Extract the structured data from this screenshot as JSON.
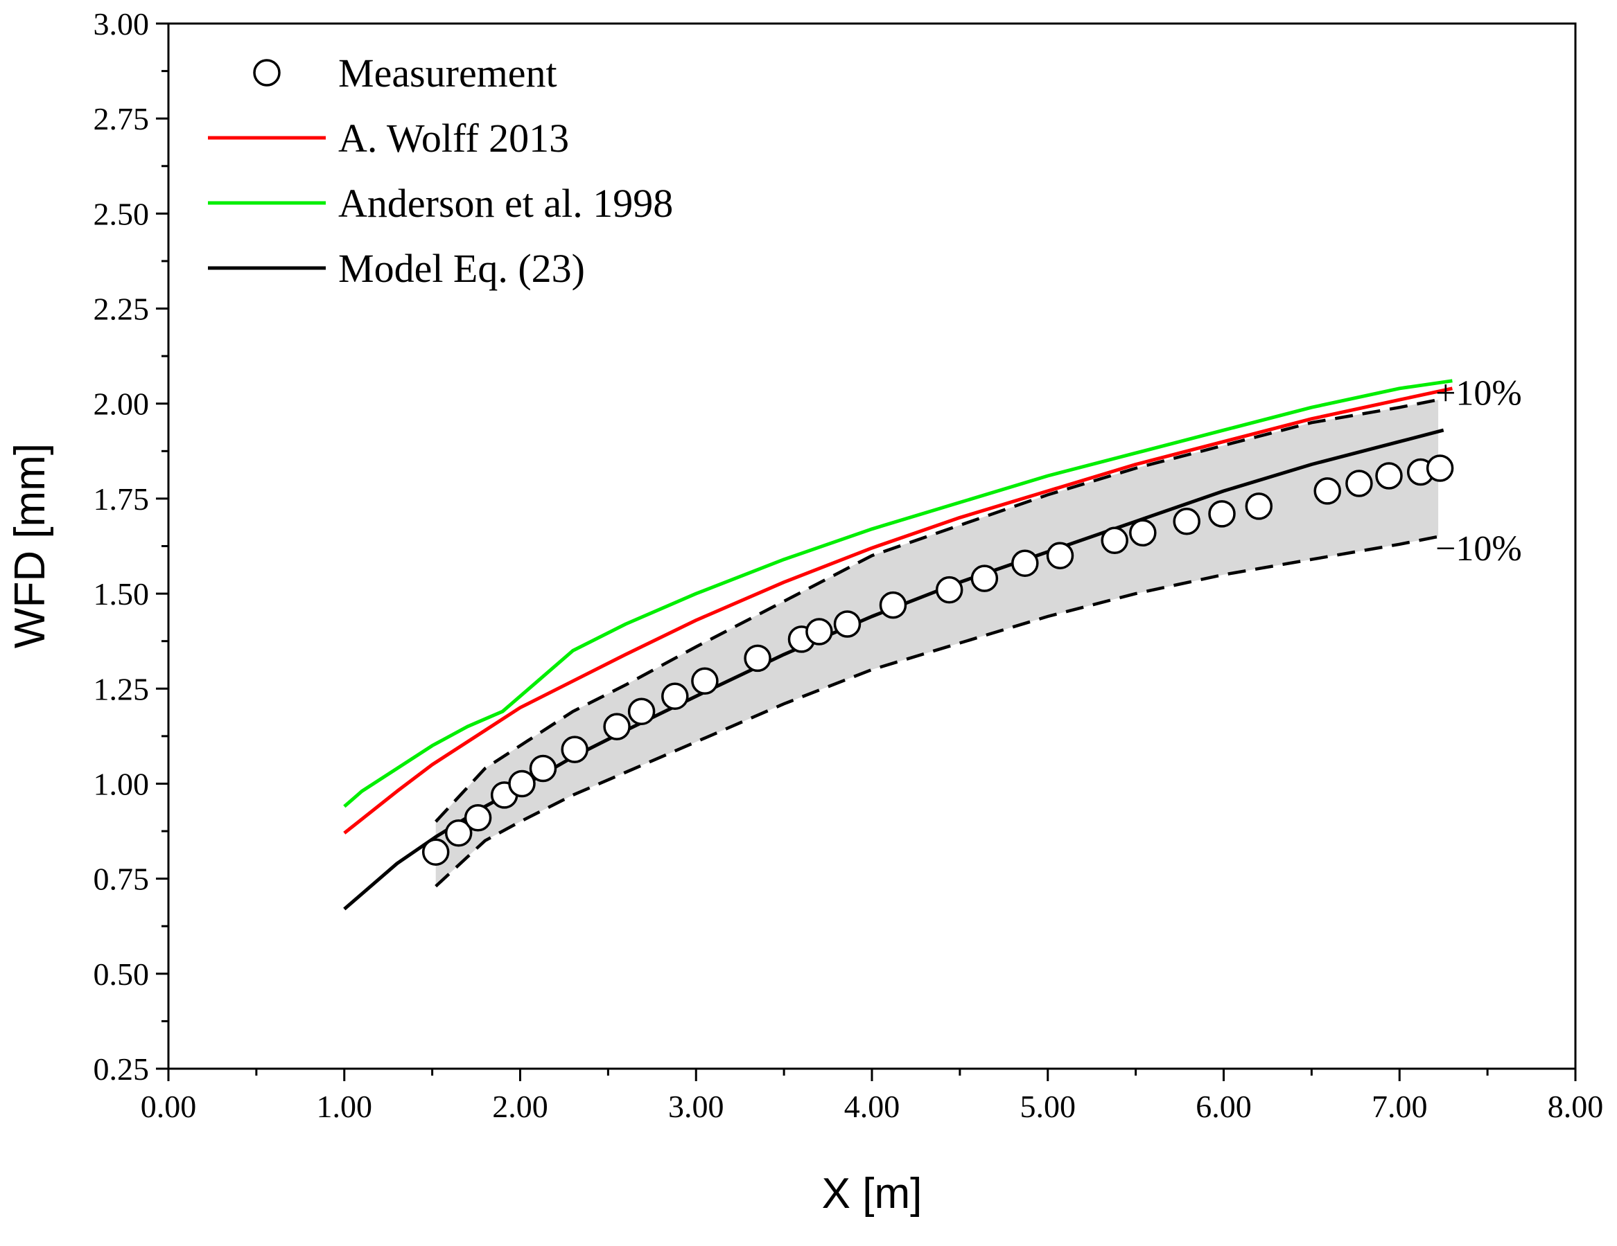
{
  "chart_data": {
    "type": "line",
    "title": "",
    "xlabel": "X [m]",
    "ylabel": "WFD [mm]",
    "xlim": [
      0,
      8
    ],
    "ylim": [
      0.25,
      3.0
    ],
    "x_ticks": [
      "0.00",
      "1.00",
      "2.00",
      "3.00",
      "4.00",
      "5.00",
      "6.00",
      "7.00",
      "8.00"
    ],
    "y_ticks": [
      "0.25",
      "0.50",
      "0.75",
      "1.00",
      "1.25",
      "1.50",
      "1.75",
      "2.00",
      "2.25",
      "2.50",
      "2.75",
      "3.00"
    ],
    "grid": false,
    "legend_position": "top-left",
    "series": [
      {
        "name": "Measurement",
        "kind": "scatter",
        "marker": "open-circle",
        "color": "#000000",
        "x": [
          1.52,
          1.65,
          1.76,
          1.91,
          2.01,
          2.13,
          2.31,
          2.55,
          2.69,
          2.88,
          3.05,
          3.35,
          3.6,
          3.7,
          3.86,
          4.12,
          4.44,
          4.64,
          4.87,
          5.07,
          5.38,
          5.54,
          5.79,
          5.99,
          6.2,
          6.59,
          6.77,
          6.94,
          7.12,
          7.23
        ],
        "y": [
          0.82,
          0.87,
          0.91,
          0.97,
          1.0,
          1.04,
          1.09,
          1.15,
          1.19,
          1.23,
          1.27,
          1.33,
          1.38,
          1.4,
          1.42,
          1.47,
          1.51,
          1.54,
          1.58,
          1.6,
          1.64,
          1.66,
          1.69,
          1.71,
          1.73,
          1.77,
          1.79,
          1.81,
          1.82,
          1.83
        ]
      },
      {
        "name": "A. Wolff 2013",
        "kind": "line",
        "color": "#ff0000",
        "x": [
          1.0,
          1.3,
          1.5,
          1.8,
          2.0,
          2.3,
          2.6,
          3.0,
          3.5,
          4.0,
          4.5,
          5.0,
          5.5,
          6.0,
          6.5,
          7.0,
          7.3
        ],
        "y": [
          0.87,
          0.98,
          1.05,
          1.14,
          1.2,
          1.27,
          1.34,
          1.43,
          1.53,
          1.62,
          1.7,
          1.77,
          1.84,
          1.9,
          1.96,
          2.01,
          2.04
        ]
      },
      {
        "name": "Anderson et al. 1998",
        "kind": "line",
        "color": "#00ee00",
        "x": [
          1.0,
          1.1,
          1.3,
          1.5,
          1.7,
          1.9,
          2.1,
          2.3,
          2.6,
          3.0,
          3.5,
          4.0,
          4.5,
          5.0,
          5.5,
          6.0,
          6.5,
          7.0,
          7.3
        ],
        "y": [
          0.94,
          0.98,
          1.04,
          1.1,
          1.15,
          1.19,
          1.27,
          1.35,
          1.42,
          1.5,
          1.59,
          1.67,
          1.74,
          1.81,
          1.87,
          1.93,
          1.99,
          2.04,
          2.06
        ]
      },
      {
        "name": "Model Eq. (23)",
        "kind": "line",
        "color": "#000000",
        "x": [
          1.0,
          1.3,
          1.52,
          1.8,
          2.0,
          2.3,
          2.6,
          3.0,
          3.5,
          4.0,
          4.5,
          5.0,
          5.5,
          6.0,
          6.5,
          7.0,
          7.25
        ],
        "y": [
          0.67,
          0.79,
          0.86,
          0.94,
          0.99,
          1.07,
          1.14,
          1.23,
          1.34,
          1.44,
          1.53,
          1.61,
          1.69,
          1.77,
          1.84,
          1.9,
          1.93
        ]
      }
    ],
    "bands": [
      {
        "name": "±10%",
        "fill": "#d9d9d9",
        "x": [
          1.52,
          1.8,
          2.0,
          2.3,
          2.6,
          3.0,
          3.5,
          4.0,
          4.5,
          5.0,
          5.5,
          6.0,
          6.5,
          7.0,
          7.22
        ],
        "upper": [
          0.9,
          1.04,
          1.1,
          1.19,
          1.26,
          1.36,
          1.48,
          1.6,
          1.68,
          1.76,
          1.83,
          1.89,
          1.95,
          1.99,
          2.01
        ],
        "lower": [
          0.73,
          0.85,
          0.9,
          0.97,
          1.03,
          1.11,
          1.21,
          1.3,
          1.37,
          1.44,
          1.5,
          1.55,
          1.59,
          1.63,
          1.65
        ]
      }
    ],
    "annotations": [
      {
        "text": "+10%",
        "x": 7.45,
        "y": 2.03
      },
      {
        "text": "−10%",
        "x": 7.45,
        "y": 1.62
      }
    ]
  }
}
